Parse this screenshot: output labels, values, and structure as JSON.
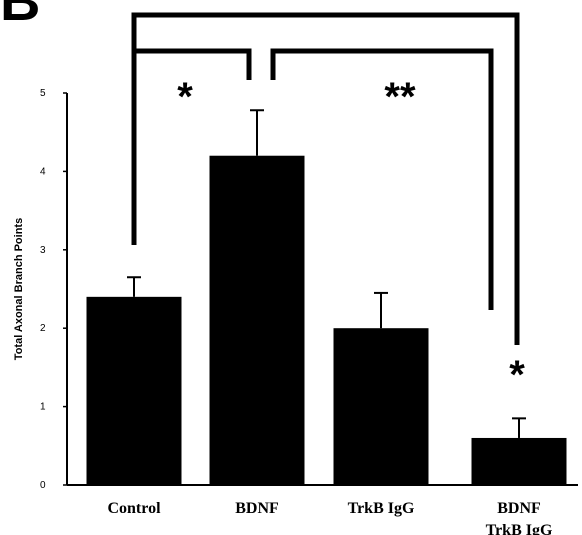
{
  "panel_label": "B",
  "chart_data": {
    "type": "bar",
    "ylabel": "Total Axonal Branch Points",
    "xlabel": "",
    "ylim": [
      0,
      5
    ],
    "yticks": [
      0,
      1,
      2,
      3,
      4,
      5
    ],
    "categories": [
      [
        "Control"
      ],
      [
        "BDNF"
      ],
      [
        "TrkB IgG"
      ],
      [
        "BDNF",
        "TrkB IgG"
      ]
    ],
    "values": [
      2.4,
      4.2,
      2.0,
      0.6
    ],
    "errors": [
      0.25,
      0.58,
      0.45,
      0.25
    ],
    "bar_color": "#000000",
    "significance": [
      {
        "from": 0,
        "to": 1,
        "label": "*"
      },
      {
        "from": 1,
        "to": 2,
        "label": "**"
      },
      {
        "from": 0,
        "to": 3,
        "label": ""
      },
      {
        "bar": 3,
        "label": "*"
      }
    ]
  }
}
